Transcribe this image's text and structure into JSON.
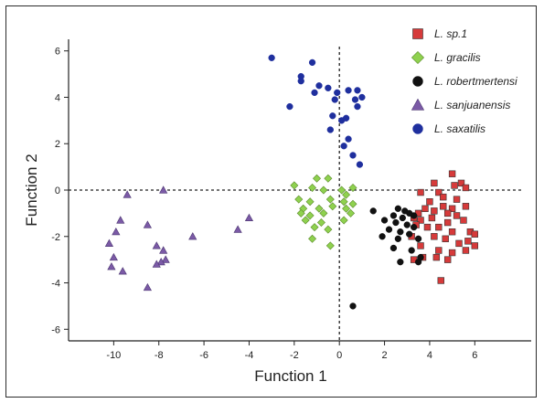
{
  "chart_data": {
    "type": "scatter",
    "xlabel": "Function 1",
    "ylabel": "Function 2",
    "xlim": [
      -12,
      8.5
    ],
    "ylim": [
      -6.5,
      6.5
    ],
    "x_ticks": [
      -10,
      -8,
      -6,
      -4,
      -2,
      0,
      2,
      4,
      6
    ],
    "y_ticks": [
      -6,
      -4,
      -2,
      0,
      2,
      4,
      6
    ],
    "reference_lines": {
      "x": 0,
      "y": 0,
      "style": "dotted"
    },
    "grid": false,
    "legend_position": "top-right",
    "series": [
      {
        "name": "L. sp.1",
        "marker": "square",
        "color": "#d63a3a",
        "points": [
          [
            5.0,
            0.7
          ],
          [
            5.4,
            0.3
          ],
          [
            5.1,
            0.2
          ],
          [
            5.6,
            0.1
          ],
          [
            4.2,
            0.3
          ],
          [
            3.6,
            -0.1
          ],
          [
            4.4,
            -0.1
          ],
          [
            4.6,
            -0.3
          ],
          [
            5.2,
            -0.4
          ],
          [
            4.0,
            -0.5
          ],
          [
            3.8,
            -0.8
          ],
          [
            3.5,
            -1.0
          ],
          [
            4.2,
            -0.9
          ],
          [
            4.6,
            -0.7
          ],
          [
            5.0,
            -0.8
          ],
          [
            5.6,
            -0.7
          ],
          [
            4.8,
            -1.0
          ],
          [
            3.3,
            -1.2
          ],
          [
            3.6,
            -1.3
          ],
          [
            4.1,
            -1.2
          ],
          [
            4.8,
            -1.4
          ],
          [
            5.2,
            -1.1
          ],
          [
            5.5,
            -1.3
          ],
          [
            3.4,
            -1.5
          ],
          [
            3.9,
            -1.6
          ],
          [
            4.4,
            -1.6
          ],
          [
            5.0,
            -1.8
          ],
          [
            5.8,
            -1.8
          ],
          [
            6.0,
            -1.9
          ],
          [
            3.2,
            -2.0
          ],
          [
            4.2,
            -2.0
          ],
          [
            4.7,
            -2.1
          ],
          [
            5.3,
            -2.3
          ],
          [
            5.7,
            -2.2
          ],
          [
            6.0,
            -2.4
          ],
          [
            3.6,
            -2.4
          ],
          [
            4.4,
            -2.6
          ],
          [
            5.0,
            -2.7
          ],
          [
            5.6,
            -2.6
          ],
          [
            3.7,
            -2.9
          ],
          [
            4.3,
            -2.9
          ],
          [
            4.8,
            -3.0
          ],
          [
            3.3,
            -3.0
          ],
          [
            4.5,
            -3.9
          ]
        ]
      },
      {
        "name": "L. gracilis",
        "marker": "diamond",
        "color": "#8fd14f",
        "points": [
          [
            -1.0,
            0.5
          ],
          [
            -0.5,
            0.5
          ],
          [
            -2.0,
            0.2
          ],
          [
            -1.2,
            0.1
          ],
          [
            -0.7,
            0.0
          ],
          [
            0.1,
            0.0
          ],
          [
            0.6,
            0.1
          ],
          [
            0.3,
            -0.2
          ],
          [
            -1.8,
            -0.4
          ],
          [
            -1.3,
            -0.5
          ],
          [
            -0.4,
            -0.4
          ],
          [
            0.2,
            -0.5
          ],
          [
            0.6,
            -0.6
          ],
          [
            -1.6,
            -0.8
          ],
          [
            -0.9,
            -0.8
          ],
          [
            -0.3,
            -0.7
          ],
          [
            0.3,
            -0.8
          ],
          [
            -1.7,
            -1.0
          ],
          [
            -1.3,
            -1.1
          ],
          [
            -0.7,
            -1.0
          ],
          [
            0.5,
            -1.0
          ],
          [
            -1.5,
            -1.3
          ],
          [
            -0.8,
            -1.4
          ],
          [
            0.2,
            -1.3
          ],
          [
            -1.1,
            -1.6
          ],
          [
            -0.5,
            -1.7
          ],
          [
            -1.2,
            -2.1
          ],
          [
            -0.4,
            -2.4
          ]
        ]
      },
      {
        "name": "L. robertmertensi",
        "marker": "circle",
        "color": "#111111",
        "points": [
          [
            1.5,
            -0.9
          ],
          [
            2.6,
            -0.8
          ],
          [
            2.9,
            -0.9
          ],
          [
            3.1,
            -1.0
          ],
          [
            2.4,
            -1.1
          ],
          [
            2.8,
            -1.2
          ],
          [
            3.3,
            -1.1
          ],
          [
            2.0,
            -1.3
          ],
          [
            2.5,
            -1.4
          ],
          [
            3.0,
            -1.5
          ],
          [
            3.3,
            -1.6
          ],
          [
            2.2,
            -1.7
          ],
          [
            2.7,
            -1.8
          ],
          [
            3.1,
            -1.9
          ],
          [
            1.9,
            -2.0
          ],
          [
            2.6,
            -2.1
          ],
          [
            3.5,
            -2.1
          ],
          [
            2.4,
            -2.5
          ],
          [
            3.2,
            -2.6
          ],
          [
            3.6,
            -2.9
          ],
          [
            2.7,
            -3.1
          ],
          [
            3.5,
            -3.1
          ],
          [
            0.6,
            -5.0
          ]
        ]
      },
      {
        "name": "L. sanjuanensis",
        "marker": "triangle",
        "color": "#7b5aa6",
        "points": [
          [
            -7.8,
            0.0
          ],
          [
            -9.4,
            -0.2
          ],
          [
            -9.7,
            -1.3
          ],
          [
            -8.5,
            -1.5
          ],
          [
            -4.0,
            -1.2
          ],
          [
            -4.5,
            -1.7
          ],
          [
            -9.9,
            -1.8
          ],
          [
            -6.5,
            -2.0
          ],
          [
            -10.2,
            -2.3
          ],
          [
            -8.1,
            -2.4
          ],
          [
            -7.8,
            -2.6
          ],
          [
            -10.0,
            -2.9
          ],
          [
            -7.7,
            -3.0
          ],
          [
            -7.9,
            -3.1
          ],
          [
            -8.1,
            -3.2
          ],
          [
            -10.1,
            -3.3
          ],
          [
            -9.6,
            -3.5
          ],
          [
            -8.5,
            -4.2
          ]
        ]
      },
      {
        "name": "L. saxatilis",
        "marker": "circle",
        "color": "#1f2f9e",
        "points": [
          [
            -3.0,
            5.7
          ],
          [
            -1.2,
            5.5
          ],
          [
            -1.7,
            4.9
          ],
          [
            -1.7,
            4.7
          ],
          [
            -0.9,
            4.5
          ],
          [
            -0.5,
            4.4
          ],
          [
            -1.1,
            4.2
          ],
          [
            -0.1,
            4.2
          ],
          [
            0.4,
            4.3
          ],
          [
            0.8,
            4.3
          ],
          [
            1.0,
            4.0
          ],
          [
            0.7,
            3.9
          ],
          [
            -0.2,
            3.9
          ],
          [
            -0.3,
            3.2
          ],
          [
            0.1,
            3.0
          ],
          [
            0.3,
            3.1
          ],
          [
            -2.2,
            3.6
          ],
          [
            0.8,
            3.6
          ],
          [
            -0.4,
            2.6
          ],
          [
            0.4,
            2.2
          ],
          [
            0.2,
            1.9
          ],
          [
            0.6,
            1.5
          ],
          [
            0.9,
            1.1
          ]
        ]
      }
    ]
  }
}
